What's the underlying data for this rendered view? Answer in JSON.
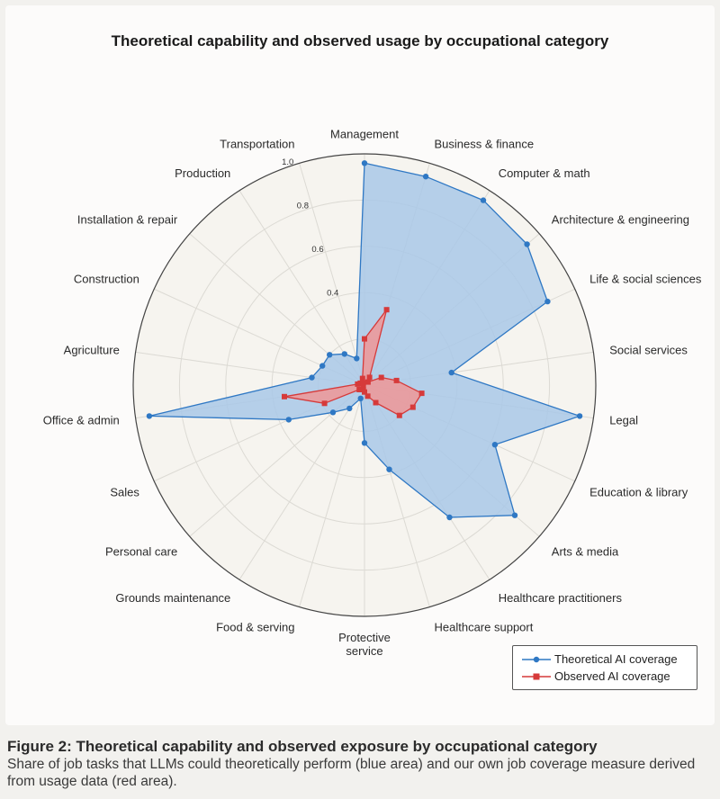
{
  "chart_data": {
    "type": "radar",
    "title": "Theoretical capability and observed usage by occupational category",
    "categories": [
      "Management",
      "Business & finance",
      "Computer & math",
      "Architecture & engineering",
      "Life & social sciences",
      "Social services",
      "Legal",
      "Education & library",
      "Arts & media",
      "Healthcare practitioners",
      "Healthcare support",
      "Protective service",
      "Food & serving",
      "Grounds maintenance",
      "Personal care",
      "Sales",
      "Office & admin",
      "Agriculture",
      "Construction",
      "Installation & repair",
      "Production",
      "Transportation"
    ],
    "category_display": [
      "Management",
      "Business & finance",
      "Computer & math",
      "Architecture & engineering",
      "Life & social sciences",
      "Social services",
      "Legal",
      "Education & library",
      "Arts & media",
      "Healthcare practitioners",
      "Healthcare support",
      "Protective\nservice",
      "Food & serving",
      "Grounds maintenance",
      "Personal care",
      "Sales",
      "Office & admin",
      "Agriculture",
      "Construction",
      "Installation & repair",
      "Production",
      "Transportation"
    ],
    "rlim": [
      0,
      1.0
    ],
    "rticks": [
      0.4,
      0.6,
      0.8,
      1.0
    ],
    "rtick_labels": [
      "0.4",
      "0.6",
      "0.8",
      "1.0"
    ],
    "grid": true,
    "legend_position": "bottom-right",
    "series": [
      {
        "name": "Theoretical AI coverage",
        "color": "#2f78c4",
        "fill": "#a9c8e8",
        "marker": "circle",
        "values": [
          0.96,
          0.94,
          0.95,
          0.93,
          0.87,
          0.38,
          0.94,
          0.62,
          0.86,
          0.68,
          0.38,
          0.25,
          0.06,
          0.12,
          0.18,
          0.36,
          0.94,
          0.23,
          0.2,
          0.2,
          0.16,
          0.12
        ]
      },
      {
        "name": "Observed AI coverage",
        "color": "#d63a3a",
        "fill": "#ef9696",
        "marker": "square",
        "values": [
          0.2,
          0.34,
          0.04,
          0.02,
          0.08,
          0.14,
          0.25,
          0.23,
          0.2,
          0.09,
          0.05,
          0.03,
          0.02,
          0.01,
          0.03,
          0.19,
          0.35,
          0.03,
          0.02,
          0.01,
          0.01,
          0.03
        ]
      }
    ]
  },
  "legend": {
    "items": [
      "Theoretical AI coverage",
      "Observed AI coverage"
    ]
  },
  "caption": {
    "title": "Figure 2: Theoretical capability and observed exposure by occupational category",
    "text": "Share of job tasks that LLMs could theoretically perform (blue area) and our own job coverage measure derived from usage data (red area)."
  }
}
